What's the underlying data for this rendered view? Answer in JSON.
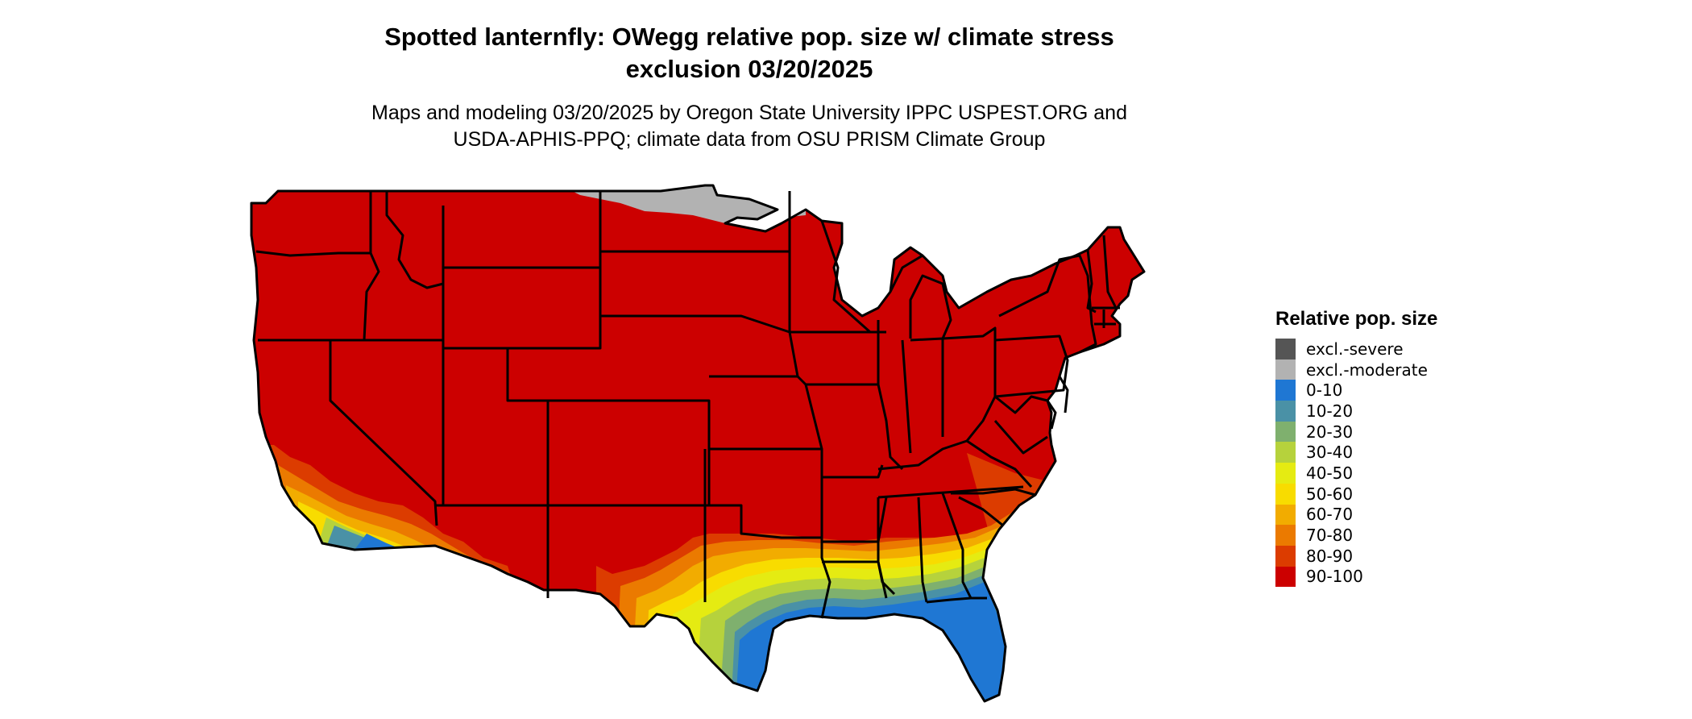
{
  "title": {
    "line1": "Spotted lanternfly: OWegg relative pop. size w/ climate stress",
    "line2": "exclusion 03/20/2025"
  },
  "subtitle": {
    "line1": "Maps and modeling 03/20/2025 by Oregon State University IPPC USPEST.ORG and",
    "line2": "USDA-APHIS-PPQ; climate data from OSU PRISM Climate Group"
  },
  "legend": {
    "title": "Relative pop. size",
    "items": [
      {
        "label": "excl.-severe",
        "color": "#555555"
      },
      {
        "label": "excl.-moderate",
        "color": "#b2b2b2"
      },
      {
        "label": "0-10",
        "color": "#1f77d3"
      },
      {
        "label": "10-20",
        "color": "#4a91a6"
      },
      {
        "label": "20-30",
        "color": "#7fb06e"
      },
      {
        "label": "30-40",
        "color": "#b6d23c"
      },
      {
        "label": "40-50",
        "color": "#e5eb12"
      },
      {
        "label": "50-60",
        "color": "#f8dc00"
      },
      {
        "label": "60-70",
        "color": "#f2ac00"
      },
      {
        "label": "70-80",
        "color": "#eb7a00"
      },
      {
        "label": "80-90",
        "color": "#dc3c00"
      },
      {
        "label": "90-100",
        "color": "#cc0000"
      }
    ]
  },
  "map": {
    "base_color": "#cc0000",
    "border_color": "#000000"
  }
}
